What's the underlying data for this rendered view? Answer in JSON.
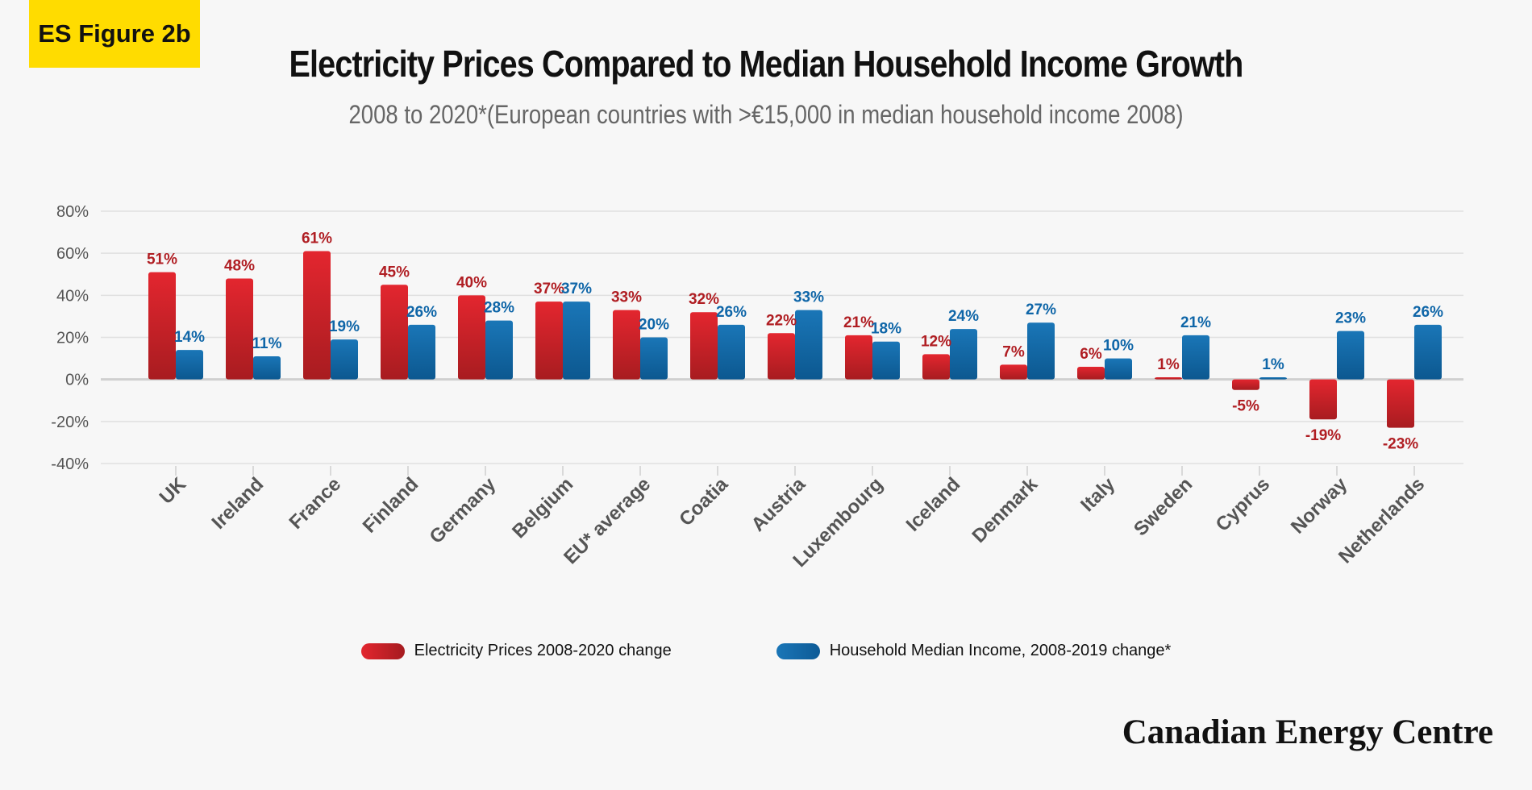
{
  "badge": "ES Figure 2b",
  "brand": "Canadian Energy Centre",
  "colors": {
    "electricity": "#d4242b",
    "electricity_label": "#b01e23",
    "income": "#1570b0",
    "income_label": "#0f66a8",
    "grid": "#e0e0e0",
    "axis_text": "#555555"
  },
  "chart_data": {
    "type": "bar",
    "title": "Electricity Prices Compared to Median Household Income Growth",
    "subtitle": "2008 to 2020*(European countries with >€15,000 in median household income 2008)",
    "categories": [
      "UK",
      "Ireland",
      "France",
      "Finland",
      "Germany",
      "Belgium",
      "EU* average",
      "Coatia",
      "Austria",
      "Luxembourg",
      "Iceland",
      "Denmark",
      "Italy",
      "Sweden",
      "Cyprus",
      "Norway",
      "Netherlands"
    ],
    "series": [
      {
        "name": "Electricity Prices 2008-2020 change",
        "values": [
          51,
          48,
          61,
          45,
          40,
          37,
          33,
          32,
          22,
          21,
          12,
          7,
          6,
          1,
          -5,
          -19,
          -23
        ]
      },
      {
        "name": "Household Median Income, 2008-2019 change*",
        "values": [
          14,
          11,
          19,
          26,
          28,
          37,
          20,
          26,
          33,
          18,
          24,
          27,
          10,
          21,
          1,
          23,
          26
        ]
      }
    ],
    "ylim": [
      -40,
      80
    ],
    "yticks": [
      80,
      60,
      40,
      20,
      0,
      -20,
      -40
    ],
    "ytick_labels": [
      "80%",
      "60%",
      "40%",
      "20%",
      "0%",
      "-20%",
      "-40%"
    ],
    "value_suffix": "%",
    "grid": true,
    "legend_position": "bottom"
  }
}
